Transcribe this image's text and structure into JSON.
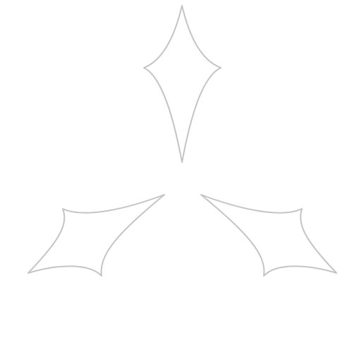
{
  "canvas": {
    "background": "#ffffff"
  },
  "style": {
    "outline_color": "#c4c4c4",
    "fill": "none"
  },
  "shapes": [
    {
      "id": "top-shape",
      "icon": "four-point-star-outline"
    },
    {
      "id": "bottom-left-shape",
      "icon": "four-point-star-outline"
    },
    {
      "id": "bottom-right-shape",
      "icon": "four-point-star-outline"
    }
  ]
}
